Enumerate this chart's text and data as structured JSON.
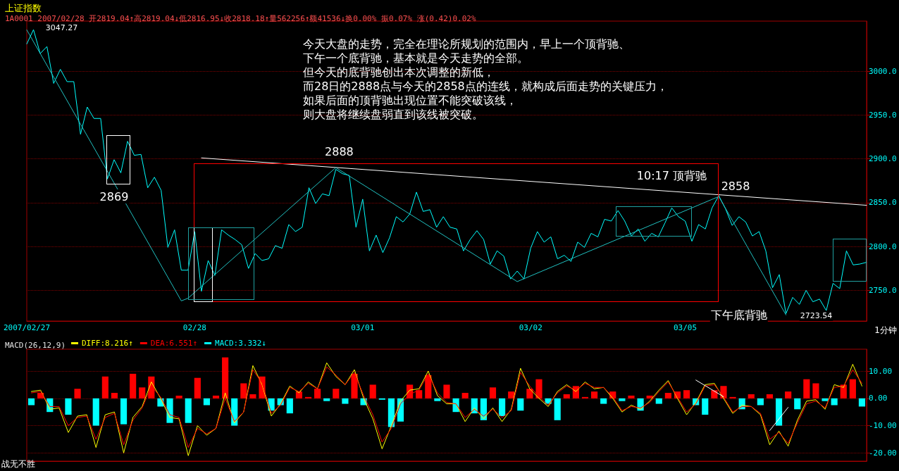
{
  "chart_data": [
    {
      "type": "line",
      "title": "上证指数",
      "subtitle": "1A0001 2007/02/28 开2819.04↑高2819.04↓低2816.95↓收2818.18↑量562256↑额41536↓换0.00% 振0.07% 涨(0.42)0.02%",
      "categories": [
        "2007/02/27",
        null,
        null,
        null,
        null,
        null,
        null,
        null,
        null,
        null,
        null,
        null,
        null,
        null,
        null,
        null,
        null,
        null,
        null,
        null,
        null,
        null,
        null,
        null,
        null,
        "02/28",
        null,
        null,
        null,
        null,
        null,
        null,
        null,
        null,
        null,
        null,
        null,
        null,
        null,
        null,
        null,
        null,
        null,
        null,
        null,
        null,
        null,
        null,
        null,
        null,
        "03/01",
        null,
        null,
        null,
        null,
        null,
        null,
        null,
        null,
        null,
        null,
        null,
        null,
        null,
        null,
        null,
        null,
        null,
        null,
        null,
        null,
        null,
        null,
        null,
        null,
        "03/02",
        null,
        null,
        null,
        null,
        null,
        null,
        null,
        null,
        null,
        null,
        null,
        null,
        null,
        null,
        null,
        null,
        null,
        null,
        null,
        null,
        null,
        null,
        "03/05",
        null,
        null,
        null,
        null,
        null,
        null,
        null,
        null,
        null,
        null,
        null,
        null,
        null,
        null,
        null,
        null,
        null,
        null,
        null,
        null,
        null,
        null,
        null,
        null,
        null,
        null,
        null
      ],
      "ylim": [
        2715,
        3057
      ],
      "yticks": [
        {
          "value": 2750,
          "label": "2750.0"
        },
        {
          "value": 2800,
          "label": "2800.0"
        },
        {
          "value": 2850,
          "label": "2850.0"
        },
        {
          "value": 2900,
          "label": "2900.0"
        },
        {
          "value": 2950,
          "label": "2950.0"
        },
        {
          "value": 3000,
          "label": "3000.0"
        }
      ],
      "grid": "y",
      "marker": "none",
      "line_style": "solid",
      "series": [
        {
          "color": "#00ffff",
          "values": [
            3031,
            3047.27,
            3020,
            3028,
            2986,
            3002,
            2988,
            2988,
            2928,
            2959,
            2946,
            2946,
            2877,
            2899,
            2884,
            2920,
            2904,
            2905,
            2867,
            2879,
            2864,
            2799,
            2819,
            2773,
            2773,
            2817,
            2749,
            2784,
            2767,
            2819,
            2813,
            2808,
            2802,
            2775,
            2792,
            2784,
            2786,
            2801,
            2798,
            2825,
            2817,
            2822,
            2867,
            2849,
            2860,
            2858,
            2888,
            2883,
            2881,
            2822,
            2854,
            2795,
            2813,
            2793,
            2810,
            2834,
            2828,
            2837,
            2862,
            2840,
            2842,
            2822,
            2834,
            2822,
            2820,
            2795,
            2808,
            2818,
            2808,
            2780,
            2795,
            2789,
            2763,
            2772,
            2763,
            2798,
            2817,
            2805,
            2811,
            2786,
            2790,
            2783,
            2805,
            2799,
            2815,
            2811,
            2831,
            2829,
            2841,
            2829,
            2812,
            2820,
            2806,
            2815,
            2811,
            2827,
            2844,
            2834,
            2829,
            2806,
            2825,
            2820,
            2844,
            2858,
            2843,
            2824,
            2834,
            2828,
            2812,
            2817,
            2795,
            2753,
            2768,
            2723.54,
            2742,
            2734,
            2750,
            2737,
            2740,
            2727,
            2758,
            2752,
            2795,
            2779,
            2780,
            2782
          ]
        },
        {
          "color": "#ffffff",
          "values": [
            null,
            null,
            null,
            null,
            null,
            null,
            null,
            null,
            null,
            null,
            null,
            null,
            null,
            null,
            null,
            null,
            null,
            null,
            null,
            null,
            null,
            null,
            null,
            null,
            null,
            null,
            2901,
            null,
            null,
            null,
            null,
            null,
            null,
            null,
            null,
            null,
            null,
            null,
            null,
            null,
            null,
            null,
            null,
            null,
            null,
            null,
            null,
            null,
            null,
            null,
            null,
            null,
            null,
            null,
            null,
            null,
            null,
            null,
            null,
            null,
            null,
            null,
            null,
            null,
            null,
            null,
            null,
            null,
            null,
            null,
            null,
            null,
            null,
            null,
            null,
            null,
            null,
            null,
            null,
            null,
            null,
            null,
            null,
            null,
            null,
            null,
            null,
            null,
            null,
            null,
            null,
            null,
            null,
            null,
            null,
            null,
            null,
            null,
            null,
            null,
            null,
            null,
            null,
            null,
            null,
            null,
            null,
            null,
            null,
            null,
            null,
            null,
            null,
            null,
            null,
            null,
            null,
            null,
            null,
            null,
            null,
            null,
            null,
            null,
            null,
            2847
          ]
        },
        {
          "color": "#20c0c0",
          "values": [
            3047,
            null,
            null,
            null,
            null,
            null,
            null,
            null,
            null,
            null,
            null,
            null,
            null,
            null,
            null,
            null,
            null,
            null,
            null,
            null,
            null,
            null,
            null,
            2738,
            2741,
            null,
            null,
            null,
            null,
            null,
            null,
            null,
            null,
            null,
            null,
            null,
            null,
            null,
            null,
            null,
            null,
            null,
            null,
            null,
            null,
            null,
            2890,
            null,
            null,
            null,
            null,
            null,
            null,
            null,
            null,
            null,
            null,
            null,
            null,
            null,
            null,
            null,
            null,
            null,
            null,
            null,
            null,
            null,
            null,
            null,
            null,
            null,
            null,
            2760,
            null,
            null,
            null,
            null,
            null,
            null,
            null,
            null,
            null,
            null,
            null,
            null,
            null,
            null,
            null,
            null,
            null,
            null,
            null,
            null,
            null,
            null,
            null,
            null,
            null,
            null,
            null,
            null,
            null,
            2857,
            null,
            null,
            null,
            null,
            null,
            null,
            null,
            null,
            null,
            2722,
            null,
            null,
            null,
            null,
            null,
            null,
            null,
            null,
            null,
            null,
            null,
            null
          ]
        }
      ],
      "annotations": [
        "今天大盘的走势，完全在理论所规划的范围内，早上一个顶背驰、下午一个底背驰，基本就是今天走势的全部。但今天的底背驰创出本次调整的新低，而28日的2888点与今天的2858点的连线，就构成后面走势的关键压力，如果后面的顶背驰出现位置不能突破该线，则大盘将继续盘弱直到该线被突破。",
        "1分钟",
        "3047.27",
        "2869",
        "2888",
        "10:17 顶背驰",
        "2858",
        "下午底背驰",
        "2723.54"
      ]
    },
    {
      "type": "line",
      "title": "MACD(26,12,9)",
      "tick_labels": "y",
      "categories": [
        null,
        null,
        null,
        null,
        null,
        null,
        null,
        null,
        null,
        null,
        null,
        null,
        null,
        null,
        null,
        null,
        null,
        null,
        null,
        null,
        null,
        null,
        null,
        null,
        null,
        null,
        null,
        null,
        null,
        null,
        null,
        null,
        null,
        null,
        null,
        null,
        null,
        null,
        null,
        null,
        null,
        null,
        null,
        null,
        null,
        null,
        null,
        null,
        null,
        null,
        null,
        null,
        null,
        null,
        null,
        null,
        null,
        null,
        null,
        null,
        null,
        null,
        null,
        null,
        null,
        null,
        null,
        null,
        null,
        null,
        null,
        null,
        null,
        null,
        null,
        null,
        null,
        null,
        null,
        null,
        null,
        null,
        null,
        null,
        null,
        null,
        null,
        null,
        null,
        null,
        null
      ],
      "ylim": [
        -23,
        18
      ],
      "yticks": [
        {
          "value": -20,
          "label": "-20.00"
        },
        {
          "value": -10,
          "label": "-10.00"
        },
        {
          "value": 0,
          "label": "0.00"
        },
        {
          "value": 10,
          "label": "10.00"
        }
      ],
      "grid": "y",
      "marker": "none",
      "legend": "top left",
      "series": [
        {
          "name": "DIFF:8.216↑",
          "color": "#ffff00",
          "values": [
            2.5,
            3,
            -4,
            -3.5,
            -12.5,
            -6.5,
            -6,
            -18,
            -6,
            -5,
            -20,
            -7,
            -3,
            6,
            0,
            -7,
            -7.5,
            -21,
            -10,
            -13.5,
            -11,
            2,
            -9,
            -5,
            12,
            5,
            -6.5,
            -2,
            4.5,
            2,
            6,
            3.5,
            13,
            8,
            5,
            10.5,
            0,
            -7.5,
            -18.5,
            -10,
            -1,
            3,
            3.5,
            10,
            1,
            -2,
            -2,
            -8.5,
            -3.5,
            -7.5,
            -3.5,
            -8.5,
            -4,
            11,
            3.5,
            0,
            -3,
            2.5,
            5,
            2.5,
            6,
            3.5,
            4,
            0,
            -5,
            -2.5,
            -4,
            -1,
            3,
            6.5,
            0,
            -6,
            -1.5,
            5,
            5.5,
            0,
            -5.5,
            -2.5,
            -3,
            -6,
            -17,
            -12,
            -17.5,
            -8,
            -1,
            -0.5,
            -4,
            5,
            4,
            12.5,
            4.5
          ]
        },
        {
          "name": "DEA:6.551↑",
          "color": "#ff0000",
          "values": [
            2,
            2.5,
            -3,
            -3,
            -10,
            -7,
            -6.5,
            -15,
            -7,
            -5.5,
            -17,
            -8,
            -3.5,
            4.5,
            0.5,
            -6,
            -7,
            -18,
            -11,
            -13,
            -11,
            0,
            -8.5,
            -5,
            10.5,
            5.5,
            -5.5,
            -2.5,
            4,
            2.5,
            5.5,
            3.5,
            11.5,
            8.5,
            5,
            9.5,
            1,
            -6,
            -16,
            -11,
            -2,
            1.5,
            3,
            9,
            2,
            -1.5,
            -2,
            -7,
            -4,
            -6.5,
            -4,
            -7,
            -4.5,
            9.5,
            4.5,
            0.5,
            -2.5,
            2,
            4.5,
            3,
            5.5,
            4,
            4,
            0.5,
            -4.5,
            -3,
            -3.5,
            -1.5,
            2.5,
            6,
            0.5,
            -5,
            -2,
            4.5,
            5,
            0.5,
            -5,
            -3,
            -3,
            -5.5,
            -15,
            -12.5,
            -16.5,
            -9,
            -2,
            -1,
            -3.5,
            4,
            4.5,
            10.5,
            5.5
          ]
        },
        {
          "type": "bar",
          "name": "MACD:3.332↓",
          "color": "#00ffff",
          "values": [
            -2.5,
            2,
            -5,
            null,
            -6,
            3.5,
            null,
            -10,
            8,
            2,
            -9.5,
            9,
            4,
            8,
            -3,
            -9,
            1,
            -9,
            7.5,
            -2.5,
            1,
            15,
            -10,
            5.5,
            1.5,
            8,
            -4.5,
            -2.5,
            -5.5,
            2.5,
            0.5,
            3.5,
            -1,
            3.5,
            -2,
            9,
            -2.5,
            5,
            -0.5,
            -10.5,
            -8.5,
            5,
            3,
            8.5,
            -1,
            5,
            -5,
            2,
            -5.5,
            -8,
            4,
            -6.5,
            2.5,
            -4.5,
            3.5,
            7,
            -2,
            -8,
            1.5,
            4.5,
            0.5,
            2.5,
            -2,
            2.5,
            -1,
            1,
            -4.5,
            1,
            -2,
            2,
            2.5,
            3,
            -2.5,
            -6,
            3,
            4.5,
            0.5,
            -4,
            1.5,
            -2.5,
            1.5,
            -10,
            2.5,
            -4,
            7,
            5.5,
            -1,
            -2.5,
            5,
            7,
            -3
          ],
          "colors": [
            "#00ffff",
            "#ff0000",
            "#00ffff",
            null,
            "#00ffff",
            "#ff0000",
            null,
            "#00ffff",
            "#ff0000",
            "#ff0000",
            "#00ffff",
            "#ff0000",
            "#ff0000",
            "#ff0000",
            "#00ffff",
            "#00ffff",
            "#ff0000",
            "#00ffff",
            "#ff0000",
            "#00ffff",
            "#ff0000",
            "#ff0000",
            "#00ffff",
            "#ff0000",
            "#ff0000",
            "#ff0000",
            "#00ffff",
            "#00ffff",
            "#00ffff",
            "#ff0000",
            "#ff0000",
            "#ff0000",
            "#00ffff",
            "#ff0000",
            "#00ffff",
            "#ff0000",
            "#00ffff",
            "#ff0000",
            "#00ffff",
            "#00ffff",
            "#00ffff",
            "#ff0000",
            "#ff0000",
            "#ff0000",
            "#00ffff",
            "#ff0000",
            "#00ffff",
            "#ff0000",
            "#00ffff",
            "#00ffff",
            "#ff0000",
            "#00ffff",
            "#ff0000",
            "#00ffff",
            "#ff0000",
            "#ff0000",
            "#00ffff",
            "#00ffff",
            "#ff0000",
            "#ff0000",
            "#ff0000",
            "#ff0000",
            "#00ffff",
            "#ff0000",
            "#00ffff",
            "#ff0000",
            "#00ffff",
            "#ff0000",
            "#00ffff",
            "#ff0000",
            "#ff0000",
            "#ff0000",
            "#00ffff",
            "#00ffff",
            "#ff0000",
            "#ff0000",
            "#ff0000",
            "#00ffff",
            "#ff0000",
            "#00ffff",
            "#ff0000",
            "#00ffff",
            "#ff0000",
            "#00ffff",
            "#ff0000",
            "#ff0000",
            "#00ffff",
            "#00ffff",
            "#ff0000",
            "#ff0000",
            "#00ffff"
          ]
        },
        {
          "color": "#ffffff",
          "values": [
            null,
            null,
            null,
            null,
            null,
            null,
            null,
            null,
            null,
            null,
            null,
            null,
            null,
            null,
            null,
            null,
            null,
            null,
            null,
            null,
            null,
            null,
            null,
            null,
            null,
            null,
            null,
            null,
            null,
            null,
            null,
            null,
            null,
            null,
            null,
            null,
            null,
            null,
            null,
            null,
            null,
            null,
            null,
            null,
            null,
            null,
            null,
            null,
            null,
            null,
            null,
            null,
            null,
            null,
            null,
            null,
            null,
            null,
            null,
            null,
            null,
            null,
            null,
            null,
            null,
            null,
            null,
            null,
            null,
            null,
            null,
            null,
            6.7,
            null,
            null,
            0.6,
            null,
            null,
            null,
            null,
            null,
            null,
            null,
            null,
            null,
            null,
            null,
            null,
            null,
            null,
            null
          ]
        },
        {
          "color": "#ffffff",
          "values": [
            null,
            null,
            null,
            null,
            null,
            null,
            null,
            null,
            null,
            null,
            null,
            null,
            null,
            null,
            null,
            null,
            null,
            null,
            null,
            null,
            null,
            null,
            null,
            null,
            null,
            null,
            null,
            null,
            null,
            null,
            null,
            null,
            null,
            null,
            null,
            null,
            null,
            null,
            null,
            null,
            null,
            null,
            null,
            null,
            null,
            null,
            null,
            null,
            null,
            null,
            null,
            null,
            null,
            null,
            null,
            null,
            null,
            null,
            null,
            null,
            null,
            null,
            null,
            null,
            null,
            null,
            null,
            null,
            null,
            null,
            null,
            null,
            null,
            null,
            null,
            null,
            null,
            null,
            null,
            null,
            -11.8,
            null,
            -3.3,
            null,
            null,
            null,
            null,
            null,
            null,
            null,
            null
          ]
        }
      ],
      "annotations": [
        "战无不胜"
      ]
    }
  ]
}
